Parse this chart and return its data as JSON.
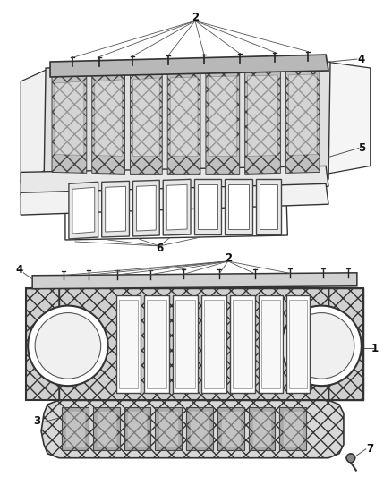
{
  "bg_color": "#ffffff",
  "lc": "#333333",
  "lc_thin": "#666666",
  "hatch_color": "#888888",
  "label_fs": 8.5
}
